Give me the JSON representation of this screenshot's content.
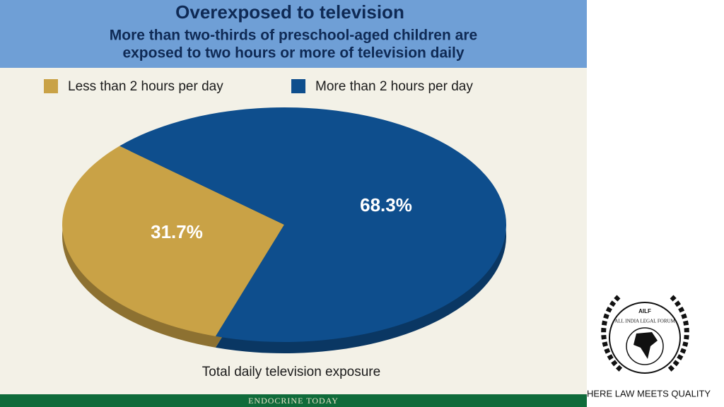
{
  "chart_data": {
    "type": "pie",
    "title": "Overexposed to television",
    "subtitle": [
      "More than two-thirds of preschool-aged children are",
      "exposed to two hours or more of television daily"
    ],
    "categories": [
      "Less than 2 hours per day",
      "More than 2 hours per day"
    ],
    "values": [
      31.7,
      68.3
    ],
    "value_labels": [
      "31.7%",
      "68.3%"
    ],
    "colors": [
      "#c9a246",
      "#0e4e8d"
    ],
    "xlabel": "Total daily television exposure",
    "source": "ENDOCRINE TODAY"
  },
  "logo": {
    "badge": "AILF",
    "name": "ALL INDIA LEGAL FORUM",
    "tagline": "HERE LAW MEETS QUALITY"
  }
}
